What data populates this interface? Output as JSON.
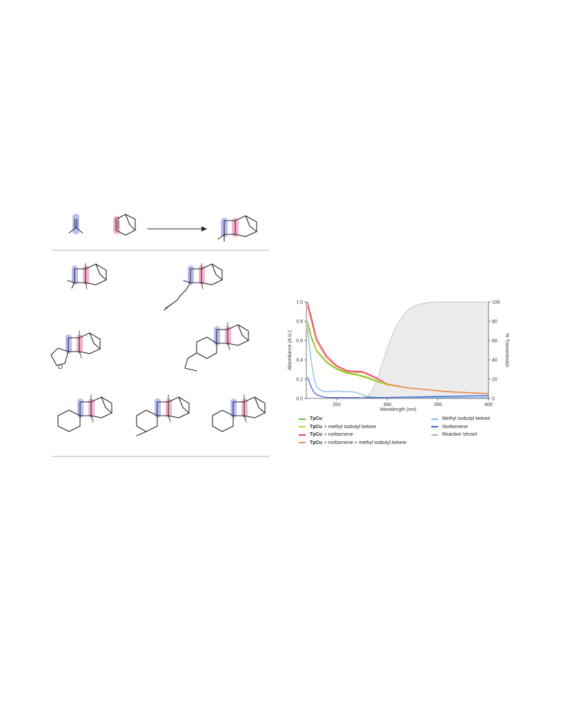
{
  "chart_data": {
    "type": "line",
    "title": "",
    "xlabel": "Wavelength (nm)",
    "ylabel": "Absorbance (A.U.)",
    "y2label": "% Transmission",
    "xlim": [
      220,
      400
    ],
    "ylim": [
      0,
      1.0
    ],
    "y2lim": [
      0,
      100
    ],
    "x_ticks": [
      "250",
      "300",
      "350",
      "400"
    ],
    "y_ticks": [
      "0.0",
      "0.2",
      "0.4",
      "0.6",
      "0.8",
      "1.0"
    ],
    "y2_ticks": [
      "0",
      "20",
      "40",
      "60",
      "80",
      "100"
    ],
    "legend_position": "bottom",
    "series": [
      {
        "name": "TpCu",
        "color": "#4ec42a",
        "axis": "left",
        "x": [
          221,
          225,
          230,
          240,
          250,
          260,
          270,
          280,
          290,
          300,
          320,
          340,
          360,
          380,
          400
        ],
        "y": [
          0.8,
          0.64,
          0.5,
          0.38,
          0.31,
          0.27,
          0.25,
          0.22,
          0.18,
          0.14,
          0.11,
          0.09,
          0.07,
          0.06,
          0.05
        ]
      },
      {
        "name": "TpCu + methyl isobutyl ketone",
        "color": "#d8c92a",
        "axis": "left",
        "x": [
          221,
          225,
          230,
          240,
          250,
          260,
          270,
          280,
          290,
          300,
          320,
          340,
          360,
          380,
          400
        ],
        "y": [
          0.76,
          0.62,
          0.49,
          0.37,
          0.3,
          0.26,
          0.24,
          0.21,
          0.17,
          0.14,
          0.11,
          0.09,
          0.07,
          0.06,
          0.05
        ]
      },
      {
        "name": "TpCu + norbornene",
        "color": "#e8317a",
        "axis": "left",
        "x": [
          221,
          225,
          230,
          240,
          250,
          260,
          270,
          275,
          280,
          290,
          300,
          320,
          340,
          360,
          380,
          400
        ],
        "y": [
          1.0,
          0.84,
          0.62,
          0.44,
          0.34,
          0.29,
          0.28,
          0.28,
          0.26,
          0.21,
          0.15,
          0.11,
          0.09,
          0.07,
          0.06,
          0.05
        ]
      },
      {
        "name": "TpCu + norbornene + methyl isobutyl ketone",
        "color": "#f08a4b",
        "axis": "left",
        "x": [
          221,
          225,
          230,
          240,
          250,
          260,
          270,
          275,
          280,
          290,
          300,
          320,
          340,
          360,
          380,
          400
        ],
        "y": [
          0.96,
          0.8,
          0.59,
          0.42,
          0.33,
          0.28,
          0.27,
          0.27,
          0.25,
          0.2,
          0.15,
          0.11,
          0.09,
          0.07,
          0.06,
          0.05
        ]
      },
      {
        "name": "Methyl isobutyl ketone",
        "color": "#7fbcf0",
        "axis": "left",
        "x": [
          221,
          224,
          227,
          230,
          235,
          240,
          245,
          250,
          255,
          260,
          265,
          270,
          275,
          280,
          290,
          300,
          350,
          400
        ],
        "y": [
          0.72,
          0.45,
          0.24,
          0.12,
          0.08,
          0.07,
          0.07,
          0.08,
          0.07,
          0.07,
          0.07,
          0.06,
          0.04,
          0.02,
          0.01,
          0.01,
          0.01,
          0.01
        ]
      },
      {
        "name": "Norbornene",
        "color": "#3b5fd9",
        "axis": "left",
        "x": [
          221,
          224,
          227,
          230,
          235,
          240,
          250,
          270,
          300,
          350,
          400
        ],
        "y": [
          0.22,
          0.14,
          0.07,
          0.04,
          0.02,
          0.01,
          0.01,
          0.01,
          0.01,
          0.02,
          0.03
        ]
      },
      {
        "name": "Reaction Vessel",
        "color": "#b5b5b5",
        "axis": "right",
        "fill": "#ececec",
        "x": [
          270,
          280,
          285,
          290,
          295,
          300,
          305,
          310,
          315,
          320,
          325,
          330,
          335,
          340,
          345,
          350,
          400
        ],
        "y": [
          0,
          2,
          8,
          20,
          36,
          52,
          66,
          77,
          85,
          91,
          95,
          97,
          98.5,
          99.3,
          99.8,
          100,
          100
        ]
      }
    ],
    "legend": [
      {
        "bold": "TpCu",
        "rest": "",
        "color": "#4ec42a"
      },
      {
        "bold": "TpCu",
        "rest": "+ methyl isobutyl ketone",
        "color": "#d8c92a"
      },
      {
        "bold": "TpCu",
        "rest": "+ norbornene",
        "color": "#e8317a"
      },
      {
        "bold": "TpCu",
        "rest": "+ norbornene + methyl isobutyl ketone",
        "color": "#f08a4b"
      },
      {
        "bold": "",
        "rest": "Methyl isobutyl ketone",
        "color": "#7fbcf0"
      },
      {
        "bold": "",
        "rest": "Norbornene",
        "color": "#3b5fd9"
      },
      {
        "bold": "",
        "rest": "Reaction Vessel",
        "color": "#b5b5b5"
      }
    ]
  },
  "scheme": {
    "highlight_colors": {
      "carbonyl": "#b9bdf5",
      "alkene": "#f6b3cf"
    },
    "heteroatom_label": "O"
  }
}
